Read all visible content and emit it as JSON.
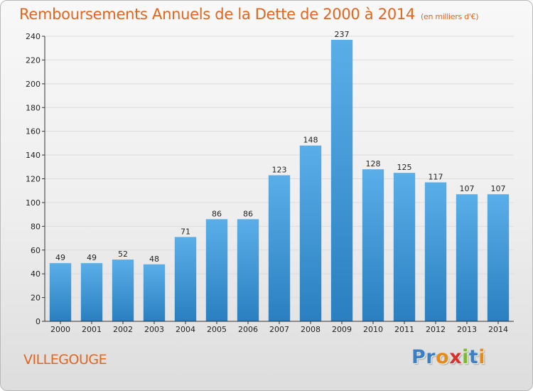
{
  "header": {
    "title": "Remboursements Annuels de la Dette de 2000 à 2014",
    "unit": "(en milliers d'€)"
  },
  "footer": {
    "commune": "VILLEGOUGE",
    "logo_letters": [
      "P",
      "r",
      "o",
      "x",
      "i",
      "t",
      "i"
    ]
  },
  "colors": {
    "title": "#e0661f",
    "bar_top": "#5aaee8",
    "bar_bottom": "#2a7fc0",
    "logo_letters": [
      "#3d7fc4",
      "#3d7fc4",
      "#e88a1a",
      "#d9312b",
      "#7db833",
      "#3d7fc4",
      "#e88a1a"
    ]
  },
  "chart_data": {
    "type": "bar",
    "title": "Remboursements Annuels de la Dette de 2000 à 2014",
    "categories": [
      "2000",
      "2001",
      "2002",
      "2003",
      "2004",
      "2005",
      "2006",
      "2007",
      "2008",
      "2009",
      "2010",
      "2011",
      "2012",
      "2013",
      "2014"
    ],
    "values": [
      49,
      49,
      52,
      48,
      71,
      86,
      86,
      123,
      148,
      237,
      128,
      125,
      117,
      107,
      107
    ],
    "ylim": [
      0,
      240
    ],
    "yticks": [
      0,
      20,
      40,
      60,
      80,
      100,
      120,
      140,
      160,
      180,
      200,
      220,
      240
    ],
    "grid": true
  }
}
